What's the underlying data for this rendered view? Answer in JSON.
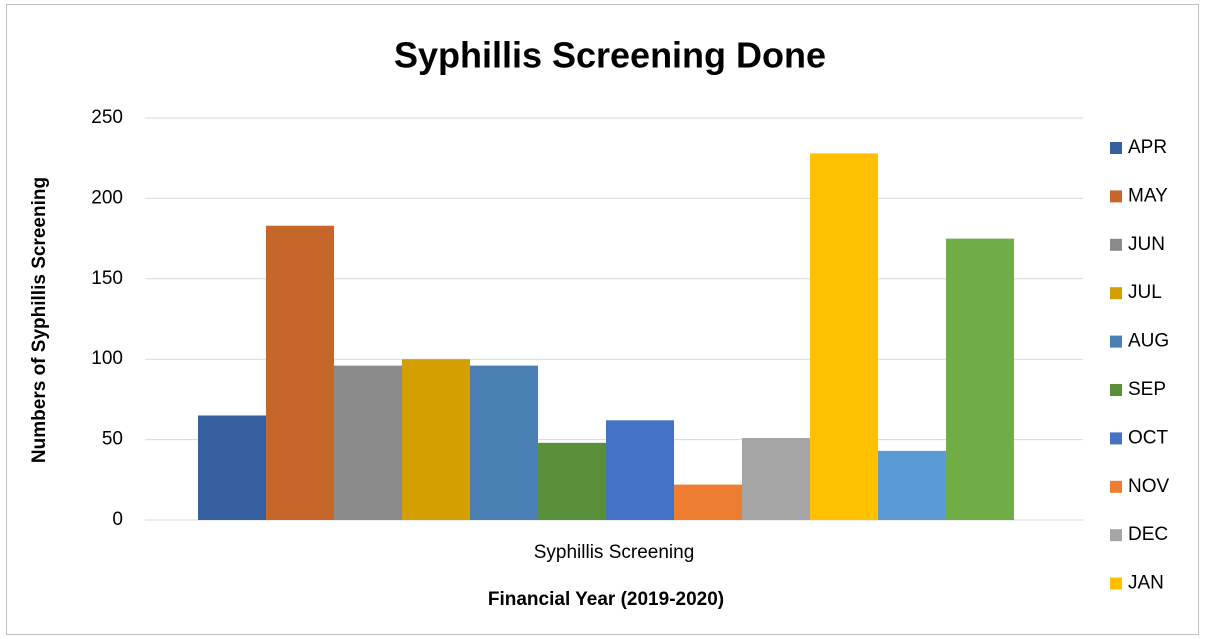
{
  "chart_data": {
    "type": "bar",
    "title": "Syphillis Screening Done",
    "x_label": "Financial Year (2019-2020)",
    "y_label": "Numbers of Syphillis Screening",
    "categories": [
      "Syphillis Screening"
    ],
    "series": [
      {
        "name": "APR",
        "color": "#355f9f",
        "values": [
          65
        ]
      },
      {
        "name": "MAY",
        "color": "#c5672b",
        "values": [
          183
        ]
      },
      {
        "name": "JUN",
        "color": "#8a8a8a",
        "values": [
          96
        ]
      },
      {
        "name": "JUL",
        "color": "#d49f00",
        "values": [
          100
        ]
      },
      {
        "name": "AUG",
        "color": "#4a7fb3",
        "values": [
          96
        ]
      },
      {
        "name": "SEP",
        "color": "#5a8f3a",
        "values": [
          48
        ]
      },
      {
        "name": "OCT",
        "color": "#4472c4",
        "values": [
          62
        ]
      },
      {
        "name": "NOV",
        "color": "#ed7d31",
        "values": [
          22
        ]
      },
      {
        "name": "DEC",
        "color": "#a5a5a5",
        "values": [
          51
        ]
      },
      {
        "name": "JAN",
        "color": "#ffc000",
        "values": [
          228
        ]
      },
      {
        "name": null,
        "color": "#5b9bd5",
        "values": [
          43
        ]
      },
      {
        "name": null,
        "color": "#70ad47",
        "values": [
          175
        ]
      }
    ],
    "ylim": [
      0,
      250
    ],
    "yticks": [
      0,
      50,
      100,
      150,
      200,
      250
    ],
    "grid": true,
    "legend": "right"
  }
}
